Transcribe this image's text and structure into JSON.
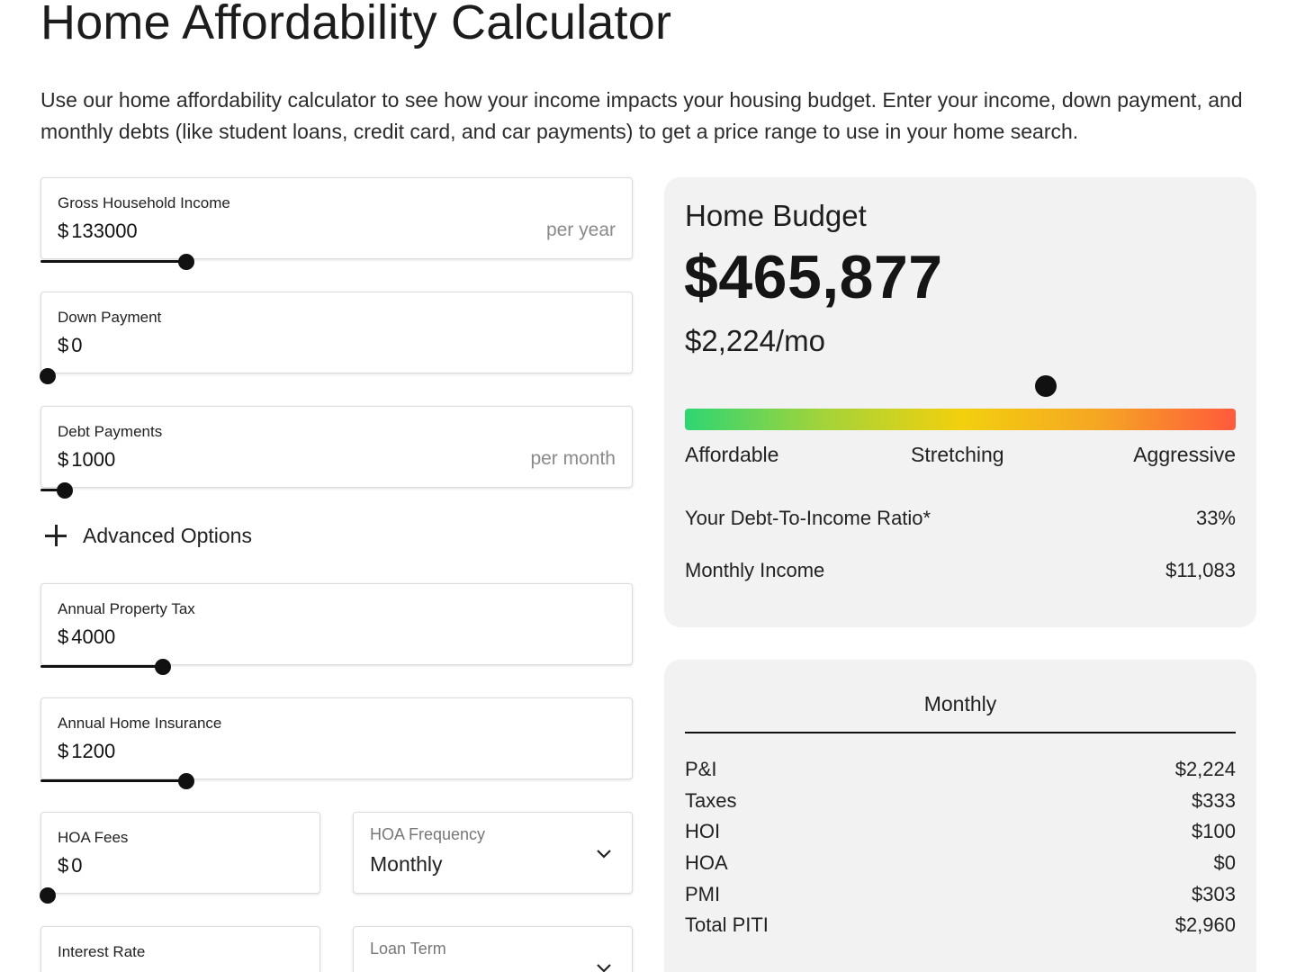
{
  "page": {
    "title": "Home Affordability Calculator",
    "intro": "Use our home affordability calculator to see how your income impacts your housing budget. Enter your income, down payment, and monthly debts (like student loans, credit card, and car payments) to get a price range to use in your home search."
  },
  "inputs": {
    "currency_symbol": "$",
    "gross_income": {
      "label": "Gross Household Income",
      "value": "133000",
      "suffix": "per year",
      "slider_level": 0.24
    },
    "down_payment": {
      "label": "Down Payment",
      "value": "0",
      "slider_level": 0.0
    },
    "debt_payments": {
      "label": "Debt Payments",
      "value": "1000",
      "suffix": "per month",
      "slider_level": 0.03
    },
    "advanced_options_label": "Advanced Options",
    "property_tax": {
      "label": "Annual Property Tax",
      "value": "4000",
      "slider_level": 0.2
    },
    "home_insurance": {
      "label": "Annual Home Insurance",
      "value": "1200",
      "slider_level": 0.24
    },
    "hoa_fees": {
      "label": "HOA Fees",
      "value": "0",
      "slider_level": 0.0
    },
    "hoa_frequency": {
      "label": "HOA Frequency",
      "value": "Monthly"
    },
    "interest_rate": {
      "label": "Interest Rate"
    },
    "loan_term": {
      "label": "Loan Term"
    }
  },
  "budget": {
    "heading": "Home Budget",
    "amount": "$465,877",
    "monthly": "$2,224/mo",
    "gauge_level": 0.656,
    "gauge_colors": [
      "#2ed573",
      "#a3d33a",
      "#f2d00e",
      "#f5a623",
      "#ff5a3c"
    ],
    "gauge_labels": {
      "affordable": "Affordable",
      "stretching": "Stretching",
      "aggressive": "Aggressive"
    },
    "dti_label": "Your Debt-To-Income Ratio*",
    "dti_value": "33%",
    "income_label": "Monthly Income",
    "income_value": "$11,083"
  },
  "breakdown": {
    "heading": "Monthly",
    "rows": [
      {
        "label": "P&I",
        "value": "$2,224"
      },
      {
        "label": "Taxes",
        "value": "$333"
      },
      {
        "label": "HOI",
        "value": "$100"
      },
      {
        "label": "HOA",
        "value": "$0"
      },
      {
        "label": "PMI",
        "value": "$303"
      },
      {
        "label": "Total PITI",
        "value": "$2,960"
      }
    ]
  }
}
